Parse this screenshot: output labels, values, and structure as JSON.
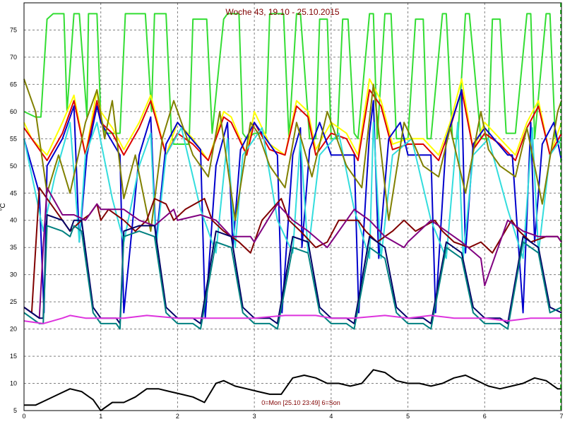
{
  "chart_data": {
    "type": "line",
    "title": "Woche 43, 19.10 - 25.10.2015",
    "ylabel": "°C",
    "xlabel": "",
    "footer": "0=Mon [25.10 23:49] 6=Son",
    "xlim": [
      0,
      7
    ],
    "ylim": [
      5,
      80
    ],
    "x_ticks": [
      "0",
      "1",
      "2",
      "3",
      "4",
      "5",
      "6",
      "7"
    ],
    "y_ticks": [
      "5",
      "10",
      "15",
      "20",
      "25",
      "30",
      "35",
      "40",
      "45",
      "50",
      "55",
      "60",
      "65",
      "70",
      "75"
    ],
    "grid": true,
    "colors": {
      "background": "#ffffff",
      "grid": "#808080",
      "title": "#800000",
      "end_marker": "#00a000"
    },
    "series": [
      {
        "color": "#33dd33",
        "x": [
          0,
          0.15,
          0.22,
          0.3,
          0.38,
          0.52,
          0.56,
          0.65,
          0.72,
          0.82,
          0.84,
          0.95,
          1.0,
          1.06,
          1.25,
          1.32,
          1.4,
          1.58,
          1.66,
          1.7,
          1.85,
          1.92,
          1.95,
          2.0,
          2.15,
          2.2,
          2.32,
          2.38,
          2.45,
          2.6,
          2.65,
          2.8,
          2.85,
          2.9,
          3.0,
          3.15,
          3.2,
          3.3,
          3.38,
          3.45,
          3.55,
          3.6,
          3.72,
          3.8,
          3.85,
          3.95,
          4.0,
          4.08,
          4.15,
          4.22,
          4.3,
          4.35,
          4.5,
          4.55,
          4.6,
          4.7,
          4.78,
          4.85,
          5.0,
          5.1,
          5.2,
          5.25,
          5.3,
          5.45,
          5.5,
          5.58,
          5.65,
          5.75,
          5.8,
          5.95,
          6.05,
          6.1,
          6.2,
          6.28,
          6.4,
          6.55,
          6.6,
          6.65,
          6.8,
          6.85,
          6.92,
          7.0
        ],
        "y": [
          60,
          59,
          59,
          77,
          78,
          78,
          60,
          78,
          78,
          59,
          78,
          78,
          59,
          56,
          56,
          78,
          78,
          78,
          60,
          78,
          78,
          56,
          54,
          54,
          54,
          77,
          77,
          77,
          56,
          77,
          78,
          78,
          56,
          55,
          56,
          56,
          78,
          78,
          78,
          55,
          78,
          78,
          55,
          55,
          77,
          77,
          55,
          55,
          77,
          77,
          56,
          55,
          78,
          78,
          55,
          78,
          78,
          55,
          55,
          77,
          77,
          55,
          55,
          78,
          78,
          55,
          55,
          78,
          78,
          55,
          55,
          77,
          77,
          56,
          56,
          78,
          78,
          55,
          78,
          78,
          55,
          54
        ]
      },
      {
        "color": "#ffff00",
        "x": [
          0,
          0.1,
          0.3,
          0.5,
          0.65,
          0.8,
          0.95,
          1.0,
          1.15,
          1.3,
          1.5,
          1.65,
          1.85,
          2.0,
          2.2,
          2.4,
          2.6,
          2.7,
          2.9,
          3.0,
          3.2,
          3.4,
          3.55,
          3.7,
          3.8,
          4.0,
          4.2,
          4.35,
          4.5,
          4.65,
          4.8,
          5.0,
          5.2,
          5.4,
          5.55,
          5.7,
          5.85,
          6.0,
          6.2,
          6.4,
          6.55,
          6.7,
          6.85,
          7.0
        ],
        "y": [
          58,
          55,
          52,
          58,
          63,
          52,
          64,
          60,
          57,
          53,
          58,
          63,
          52,
          58,
          55,
          51,
          60,
          59,
          52,
          60,
          54,
          52,
          62,
          60,
          53,
          58,
          56,
          52,
          66,
          62,
          54,
          55,
          55,
          52,
          58,
          66,
          53,
          58,
          55,
          52,
          58,
          62,
          52,
          58
        ]
      },
      {
        "color": "#dd0000",
        "x": [
          0,
          0.1,
          0.3,
          0.5,
          0.65,
          0.8,
          0.95,
          1.0,
          1.15,
          1.3,
          1.5,
          1.65,
          1.85,
          2.0,
          2.2,
          2.4,
          2.6,
          2.7,
          2.9,
          3.0,
          3.2,
          3.4,
          3.55,
          3.7,
          3.8,
          4.0,
          4.2,
          4.35,
          4.5,
          4.65,
          4.8,
          5.0,
          5.2,
          5.4,
          5.55,
          5.7,
          5.85,
          6.0,
          6.2,
          6.4,
          6.55,
          6.7,
          6.85,
          7.0
        ],
        "y": [
          57,
          55,
          51,
          56,
          62,
          52,
          62,
          58,
          56,
          52,
          57,
          62,
          52,
          56,
          54,
          51,
          59,
          58,
          52,
          58,
          53,
          52,
          61,
          59,
          52,
          56,
          55,
          51,
          64,
          61,
          53,
          54,
          54,
          51,
          57,
          64,
          53,
          56,
          54,
          51,
          57,
          61,
          52,
          56
        ]
      },
      {
        "color": "#0000cc",
        "x": [
          0,
          0.2,
          0.26,
          0.3,
          0.5,
          0.65,
          0.72,
          0.82,
          0.95,
          1.0,
          1.25,
          1.3,
          1.5,
          1.65,
          1.72,
          1.85,
          2.0,
          2.3,
          2.36,
          2.5,
          2.65,
          2.72,
          2.82,
          3.0,
          3.3,
          3.36,
          3.5,
          3.6,
          3.62,
          3.72,
          3.85,
          4.0,
          4.3,
          4.36,
          4.5,
          4.55,
          4.62,
          4.75,
          4.9,
          5.0,
          5.3,
          5.36,
          5.5,
          5.7,
          5.75,
          5.85,
          6.0,
          6.3,
          6.36,
          6.5,
          6.6,
          6.65,
          6.75,
          6.9,
          7.0
        ],
        "y": [
          55,
          45,
          23,
          50,
          55,
          61,
          36,
          52,
          61,
          58,
          52,
          23,
          52,
          59,
          36,
          54,
          58,
          53,
          22,
          50,
          58,
          35,
          53,
          58,
          52,
          23,
          52,
          57,
          35,
          53,
          58,
          52,
          52,
          23,
          56,
          62,
          33,
          55,
          58,
          52,
          52,
          23,
          55,
          64,
          34,
          54,
          57,
          52,
          52,
          23,
          58,
          36,
          54,
          58,
          51
        ]
      },
      {
        "color": "#33dddd",
        "x": [
          0,
          0.15,
          0.25,
          0.4,
          0.6,
          0.72,
          0.8,
          0.95,
          1.15,
          1.3,
          1.5,
          1.65,
          1.72,
          1.85,
          2.05,
          2.3,
          2.5,
          2.65,
          2.75,
          2.85,
          3.1,
          3.3,
          3.5,
          3.6,
          3.7,
          3.85,
          4.1,
          4.3,
          4.5,
          4.55,
          4.65,
          4.8,
          5.05,
          5.3,
          5.5,
          5.65,
          5.72,
          5.85,
          6.05,
          6.3,
          6.5,
          6.62,
          6.7,
          6.85,
          7.0
        ],
        "y": [
          55,
          45,
          38,
          48,
          58,
          36,
          52,
          58,
          44,
          36,
          50,
          56,
          35,
          52,
          57,
          42,
          34,
          55,
          35,
          52,
          57,
          40,
          34,
          55,
          34,
          52,
          56,
          42,
          33,
          58,
          33,
          52,
          55,
          40,
          33,
          58,
          33,
          52,
          55,
          42,
          33,
          57,
          34,
          52,
          55
        ]
      },
      {
        "color": "#808000",
        "x": [
          0,
          0.15,
          0.3,
          0.45,
          0.6,
          0.8,
          0.95,
          1.05,
          1.15,
          1.3,
          1.45,
          1.65,
          1.8,
          1.95,
          2.05,
          2.2,
          2.4,
          2.55,
          2.75,
          2.95,
          3.05,
          3.2,
          3.4,
          3.55,
          3.75,
          3.95,
          4.05,
          4.2,
          4.4,
          4.55,
          4.75,
          4.95,
          5.05,
          5.2,
          5.4,
          5.55,
          5.75,
          5.95,
          6.05,
          6.2,
          6.4,
          6.55,
          6.75,
          6.95,
          7.0
        ],
        "y": [
          66,
          60,
          45,
          52,
          45,
          58,
          64,
          55,
          62,
          44,
          52,
          38,
          55,
          62,
          58,
          52,
          48,
          60,
          40,
          58,
          56,
          50,
          46,
          58,
          48,
          60,
          56,
          50,
          46,
          65,
          40,
          58,
          55,
          50,
          48,
          57,
          45,
          60,
          53,
          50,
          48,
          57,
          43,
          60,
          62
        ]
      },
      {
        "color": "#800000",
        "x": [
          0,
          0.1,
          0.2,
          0.3,
          0.5,
          0.6,
          0.75,
          0.85,
          0.95,
          1.0,
          1.1,
          1.3,
          1.45,
          1.6,
          1.7,
          1.85,
          1.95,
          2.1,
          2.35,
          2.45,
          2.6,
          2.8,
          2.95,
          3.1,
          3.35,
          3.45,
          3.6,
          3.8,
          3.95,
          4.1,
          4.35,
          4.45,
          4.6,
          4.8,
          4.95,
          5.1,
          5.35,
          5.45,
          5.6,
          5.8,
          5.95,
          6.1,
          6.35,
          6.45,
          6.6,
          6.8,
          6.95,
          7.0
        ],
        "y": [
          24,
          23,
          46,
          44,
          40,
          38,
          40,
          41,
          43,
          40,
          42,
          40,
          38,
          40,
          44,
          43,
          40,
          42,
          44,
          40,
          38,
          36,
          34,
          40,
          44,
          40,
          38,
          35,
          36,
          40,
          40,
          38,
          36,
          38,
          40,
          38,
          40,
          38,
          36,
          35,
          36,
          34,
          40,
          38,
          36,
          37,
          37,
          36
        ]
      },
      {
        "color": "#800080",
        "x": [
          0,
          0.2,
          0.25,
          0.3,
          0.5,
          0.65,
          0.8,
          0.95,
          1.0,
          1.3,
          1.5,
          1.7,
          1.95,
          2.0,
          2.3,
          2.5,
          2.7,
          2.95,
          3.0,
          3.3,
          3.5,
          3.7,
          3.95,
          4.0,
          4.3,
          4.5,
          4.7,
          4.95,
          5.0,
          5.3,
          5.5,
          5.7,
          5.95,
          6.0,
          6.3,
          6.5,
          6.7,
          6.95,
          7.0
        ],
        "y": [
          24,
          22,
          35,
          46,
          41,
          41,
          40,
          43,
          42,
          42,
          40,
          39,
          42,
          40,
          41,
          40,
          37,
          37,
          36,
          43,
          40,
          38,
          35,
          36,
          42,
          40,
          37,
          35,
          36,
          40,
          38,
          36,
          33,
          28,
          40,
          38,
          37,
          37,
          36
        ]
      },
      {
        "color": "#000066",
        "x": [
          0,
          0.2,
          0.25,
          0.3,
          0.5,
          0.6,
          0.65,
          0.75,
          0.9,
          1.0,
          1.2,
          1.25,
          1.3,
          1.5,
          1.7,
          1.85,
          2.0,
          2.2,
          2.3,
          2.5,
          2.7,
          2.85,
          3.0,
          3.2,
          3.3,
          3.5,
          3.7,
          3.85,
          4.0,
          4.2,
          4.3,
          4.5,
          4.7,
          4.85,
          5.0,
          5.2,
          5.3,
          5.5,
          5.7,
          5.85,
          6.0,
          6.2,
          6.3,
          6.5,
          6.7,
          6.85,
          7.0
        ],
        "y": [
          24,
          22,
          22,
          41,
          40,
          38,
          40,
          40,
          24,
          22,
          22,
          21,
          38,
          39,
          39,
          24,
          22,
          22,
          21,
          38,
          37,
          24,
          22,
          22,
          21,
          37,
          36,
          24,
          22,
          22,
          21,
          37,
          35,
          24,
          22,
          22,
          21,
          36,
          34,
          24,
          22,
          22,
          21,
          37,
          35,
          24,
          23
        ]
      },
      {
        "color": "#008080",
        "x": [
          0,
          0.2,
          0.25,
          0.3,
          0.5,
          0.6,
          0.65,
          0.75,
          0.9,
          1.0,
          1.2,
          1.25,
          1.3,
          1.5,
          1.7,
          1.85,
          2.0,
          2.2,
          2.3,
          2.5,
          2.7,
          2.85,
          3.0,
          3.2,
          3.3,
          3.5,
          3.7,
          3.85,
          4.0,
          4.2,
          4.3,
          4.5,
          4.7,
          4.85,
          5.0,
          5.2,
          5.3,
          5.5,
          5.7,
          5.85,
          6.0,
          6.2,
          6.3,
          6.5,
          6.7,
          6.85,
          7.0
        ],
        "y": [
          23,
          21,
          21,
          39,
          38,
          37,
          39,
          38,
          23,
          21,
          21,
          20,
          37,
          38,
          37,
          23,
          21,
          21,
          20,
          36,
          35,
          23,
          21,
          21,
          20,
          35,
          34,
          23,
          21,
          21,
          20,
          35,
          33,
          23,
          21,
          21,
          20,
          35,
          33,
          23,
          21,
          21,
          20,
          36,
          34,
          23,
          24
        ]
      },
      {
        "color": "#dd33dd",
        "x": [
          0,
          0.25,
          0.5,
          0.6,
          0.8,
          1.0,
          1.3,
          1.6,
          2.0,
          2.3,
          2.7,
          3.0,
          3.4,
          3.8,
          4.0,
          4.3,
          4.7,
          5.0,
          5.3,
          5.6,
          6.0,
          6.3,
          6.6,
          7.0
        ],
        "y": [
          21.5,
          21,
          22,
          22.5,
          22,
          22,
          22,
          22.5,
          22,
          22,
          22,
          22,
          22.5,
          22.5,
          22,
          22,
          22.5,
          22,
          22.5,
          22,
          22,
          21.5,
          22,
          22
        ]
      },
      {
        "color": "#000000",
        "x": [
          0,
          0.15,
          0.3,
          0.45,
          0.6,
          0.75,
          0.9,
          1.0,
          1.15,
          1.3,
          1.45,
          1.6,
          1.75,
          1.9,
          2.05,
          2.2,
          2.35,
          2.5,
          2.6,
          2.75,
          2.9,
          3.05,
          3.2,
          3.35,
          3.5,
          3.65,
          3.8,
          3.95,
          4.1,
          4.25,
          4.4,
          4.55,
          4.7,
          4.85,
          5.0,
          5.15,
          5.3,
          5.45,
          5.6,
          5.75,
          5.9,
          6.05,
          6.2,
          6.35,
          6.5,
          6.65,
          6.8,
          6.95,
          7.0
        ],
        "y": [
          6,
          6,
          7,
          8,
          9,
          8.5,
          7,
          5,
          6.5,
          6.5,
          7.5,
          9,
          9,
          8.5,
          8,
          7.5,
          6.5,
          10,
          10.5,
          9.5,
          9,
          8.5,
          8,
          8,
          11,
          11.5,
          11,
          10,
          10,
          9.5,
          10,
          12.5,
          12,
          10.5,
          10,
          10,
          9.5,
          10,
          11,
          11.5,
          10.5,
          9.5,
          9,
          9.5,
          10,
          11,
          10.5,
          9,
          9
        ]
      }
    ]
  }
}
